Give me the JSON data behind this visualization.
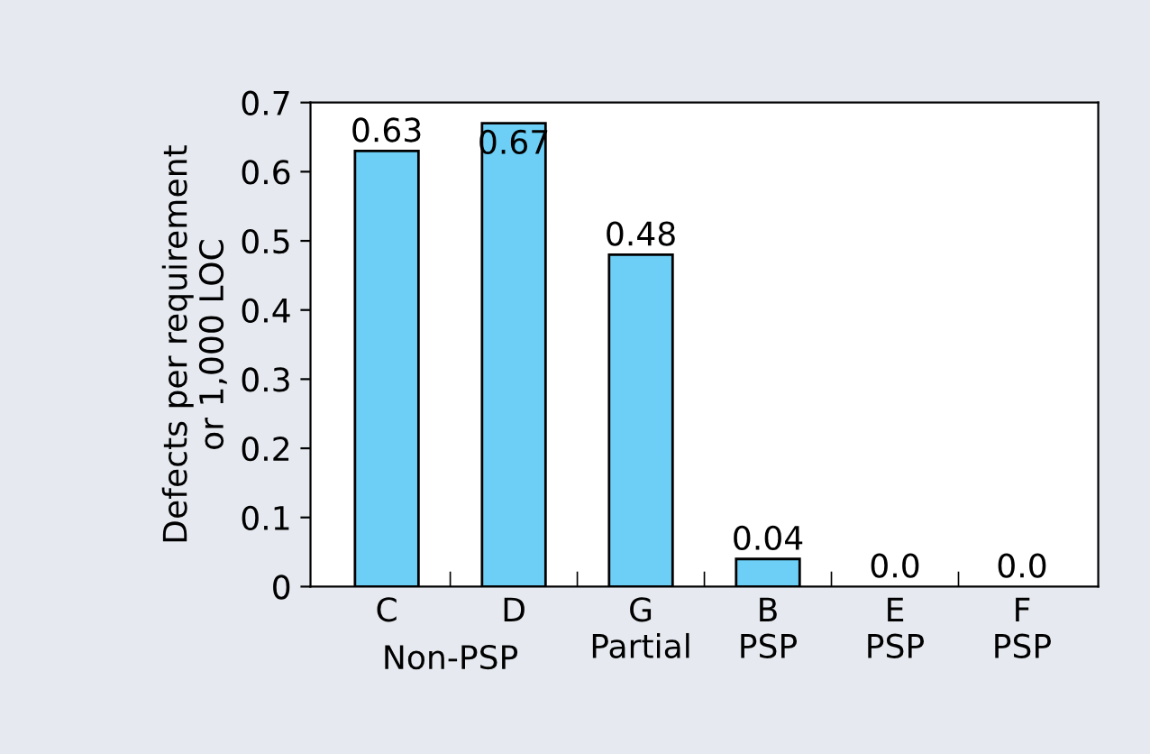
{
  "chart_data": {
    "type": "bar",
    "ylabel": "Defects per requirement\nor 1,000 LOC",
    "categories": [
      "C",
      "D",
      "G\nPartial",
      "B\nPSP",
      "E\nPSP",
      "F\nPSP"
    ],
    "values": [
      0.63,
      0.67,
      0.48,
      0.04,
      0.0,
      0.0
    ],
    "value_labels": [
      "0.63",
      "0.67",
      "0.48",
      "0.04",
      "0.0",
      "0.0"
    ],
    "color": "#6dcff6",
    "ylim": [
      0,
      0.7
    ],
    "yticks": [
      0,
      0.1,
      0.2,
      0.3,
      0.4,
      0.5,
      0.6,
      0.7
    ],
    "grid": false,
    "annotations": [
      "Non-PSP"
    ]
  }
}
